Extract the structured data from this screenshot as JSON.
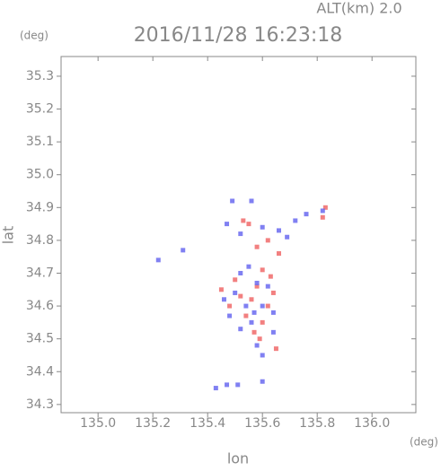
{
  "chart_data": {
    "type": "scatter",
    "header": "ALT(km) 2.0",
    "title": "2016/11/28 16:23:18",
    "y_unit": "(deg)",
    "x_unit": "(deg)",
    "xlabel": "lon",
    "ylabel": "lat",
    "xlim": [
      134.865,
      136.16
    ],
    "ylim": [
      34.275,
      35.36
    ],
    "xticks": [
      {
        "value": 135,
        "label": "135.0"
      },
      135.2,
      135.4,
      135.6,
      135.8,
      {
        "value": 136,
        "label": "136.0"
      }
    ],
    "yticks": [
      34.3,
      34.4,
      34.5,
      34.6,
      34.7,
      34.8,
      34.9,
      {
        "value": 35,
        "label": "35.0"
      },
      35.1,
      35.2,
      35.3
    ],
    "series": [
      {
        "color": "#f06a6a",
        "x": [
          135.52,
          135.56,
          135.62,
          135.58,
          135.48,
          135.64,
          135.6,
          135.65,
          135.54,
          135.6,
          135.57,
          135.83,
          135.82,
          135.53,
          135.62,
          135.66,
          135.45,
          135.5,
          135.59,
          135.63,
          135.55,
          135.58
        ],
        "y": [
          34.63,
          34.62,
          34.6,
          34.66,
          34.6,
          34.64,
          34.55,
          34.47,
          34.57,
          34.71,
          34.52,
          34.9,
          34.87,
          34.86,
          34.8,
          34.76,
          34.65,
          34.68,
          34.5,
          34.69,
          34.85,
          34.78
        ]
      },
      {
        "color": "#6a6af0",
        "x": [
          135.22,
          135.31,
          135.49,
          135.56,
          135.47,
          135.52,
          135.6,
          135.66,
          135.72,
          135.76,
          135.82,
          135.55,
          135.52,
          135.58,
          135.62,
          135.5,
          135.46,
          135.54,
          135.6,
          135.64,
          135.56,
          135.52,
          135.58,
          135.6,
          135.64,
          135.43,
          135.47,
          135.51,
          135.6,
          135.69,
          135.57,
          135.48
        ],
        "y": [
          34.74,
          34.77,
          34.92,
          34.92,
          34.85,
          34.82,
          34.84,
          34.83,
          34.86,
          34.88,
          34.89,
          34.72,
          34.7,
          34.67,
          34.66,
          34.64,
          34.62,
          34.6,
          34.6,
          34.58,
          34.55,
          34.53,
          34.48,
          34.45,
          34.52,
          34.35,
          34.36,
          34.36,
          34.37,
          34.81,
          34.58,
          34.57
        ]
      }
    ]
  }
}
